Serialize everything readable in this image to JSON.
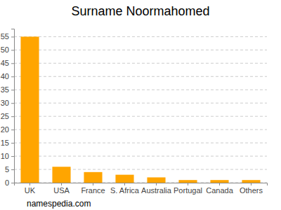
{
  "chart_data": {
    "type": "bar",
    "title": "Surname Noormahomed",
    "categories": [
      "UK",
      "USA",
      "France",
      "S. Africa",
      "Australia",
      "Portugal",
      "Canada",
      "Others"
    ],
    "values": [
      55,
      6,
      4,
      3,
      2,
      1,
      1,
      1
    ],
    "color": "#ffa500",
    "ylim": [
      0,
      58
    ],
    "yticks": [
      0,
      5,
      10,
      15,
      20,
      25,
      30,
      35,
      40,
      45,
      50,
      55
    ],
    "grid": true,
    "annotations": [
      "namespedia.com"
    ]
  }
}
